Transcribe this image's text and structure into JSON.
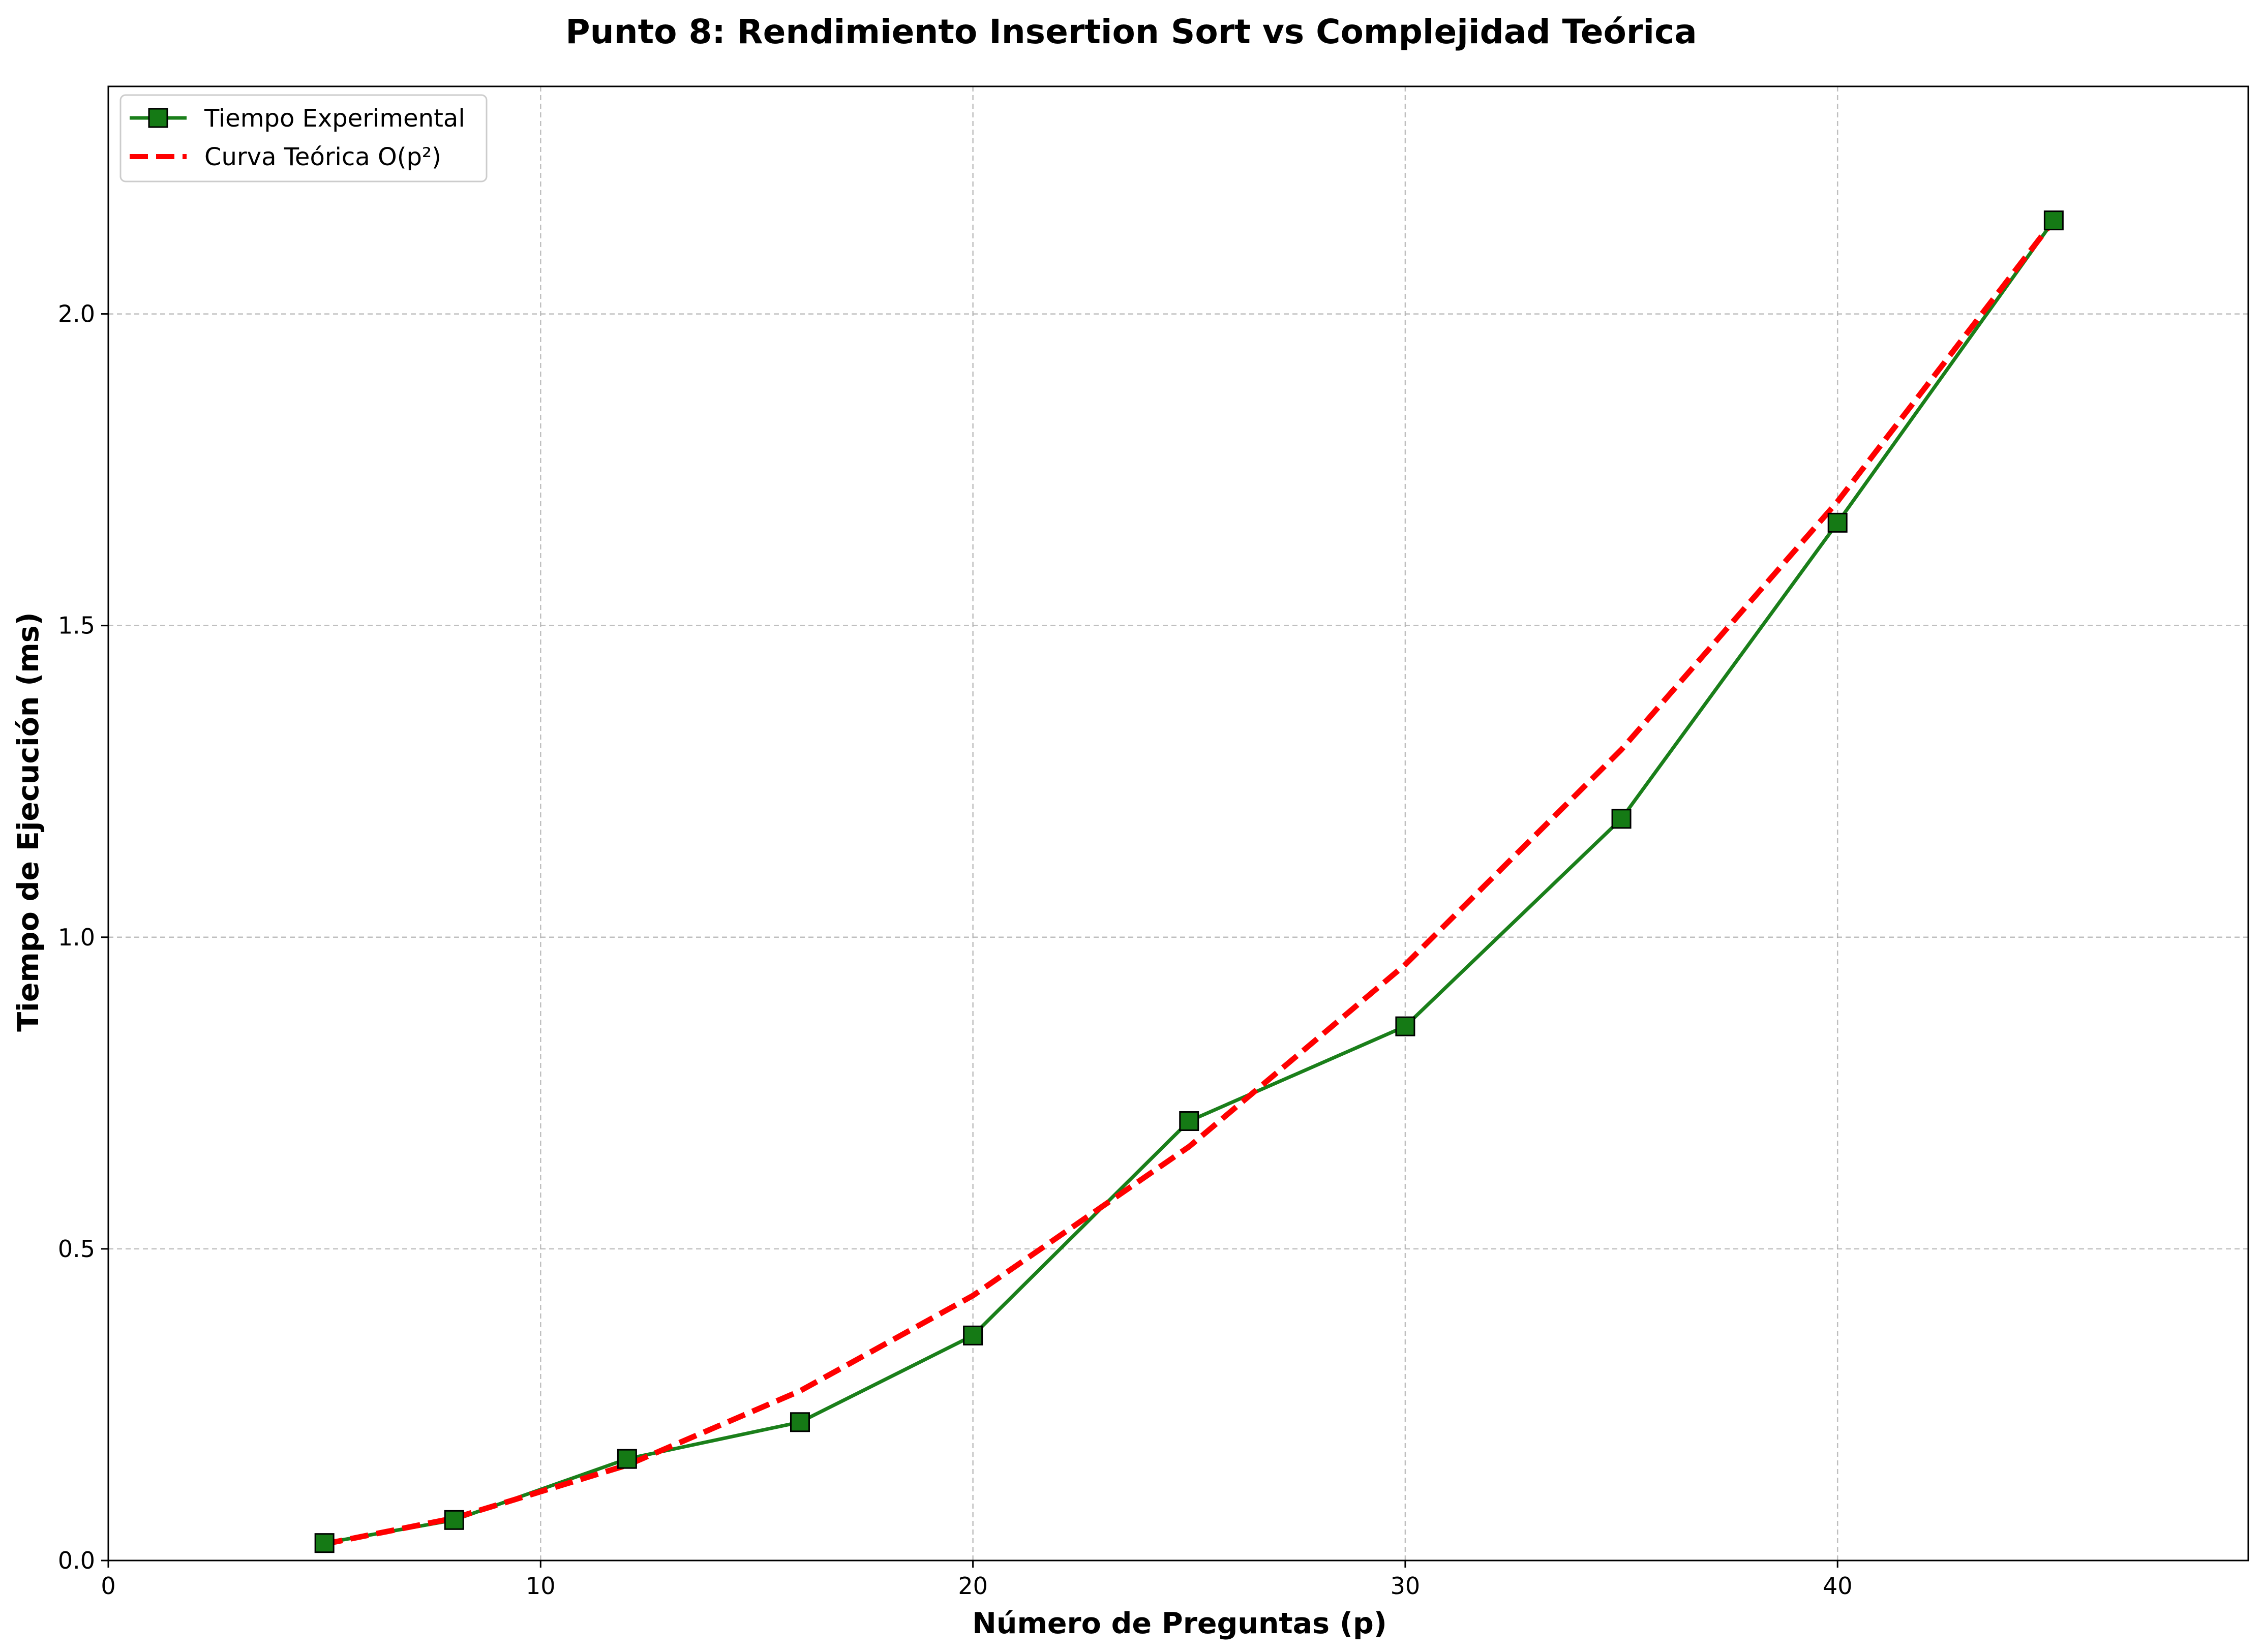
{
  "chart_data": {
    "type": "line",
    "title": "Punto 8: Rendimiento Insertion Sort vs Complejidad Teórica",
    "xlabel": "Número de Preguntas (p)",
    "ylabel": "Tiempo de Ejecución (ms)",
    "xlim": [
      0,
      49.5
    ],
    "ylim": [
      0,
      2.365
    ],
    "xticks": [
      0,
      10,
      20,
      30,
      40
    ],
    "xtick_labels": [
      "0",
      "10",
      "20",
      "30",
      "40"
    ],
    "yticks": [
      0,
      0.5,
      1.0,
      1.5,
      2.0
    ],
    "ytick_labels": [
      "0.0",
      "0.5",
      "1.0",
      "1.5",
      "2.0"
    ],
    "grid": true,
    "legend_position": "upper-left",
    "series": [
      {
        "name": "Tiempo Experimental",
        "style": "solid-line-square-markers",
        "color": "#1a7f1a",
        "marker_fill": "#157a15",
        "x": [
          5,
          8,
          12,
          16,
          20,
          25,
          30,
          35,
          40,
          45
        ],
        "y": [
          0.028,
          0.065,
          0.163,
          0.222,
          0.361,
          0.705,
          0.857,
          1.19,
          1.665,
          2.15
        ]
      },
      {
        "name": "Curva Teórica O(p²)",
        "style": "dashed-line",
        "color": "#ff0000",
        "x": [
          5,
          8,
          12,
          16,
          20,
          25,
          30,
          35,
          40,
          45
        ],
        "y": [
          0.0265,
          0.068,
          0.153,
          0.272,
          0.425,
          0.664,
          0.956,
          1.301,
          1.699,
          2.15
        ]
      }
    ]
  }
}
